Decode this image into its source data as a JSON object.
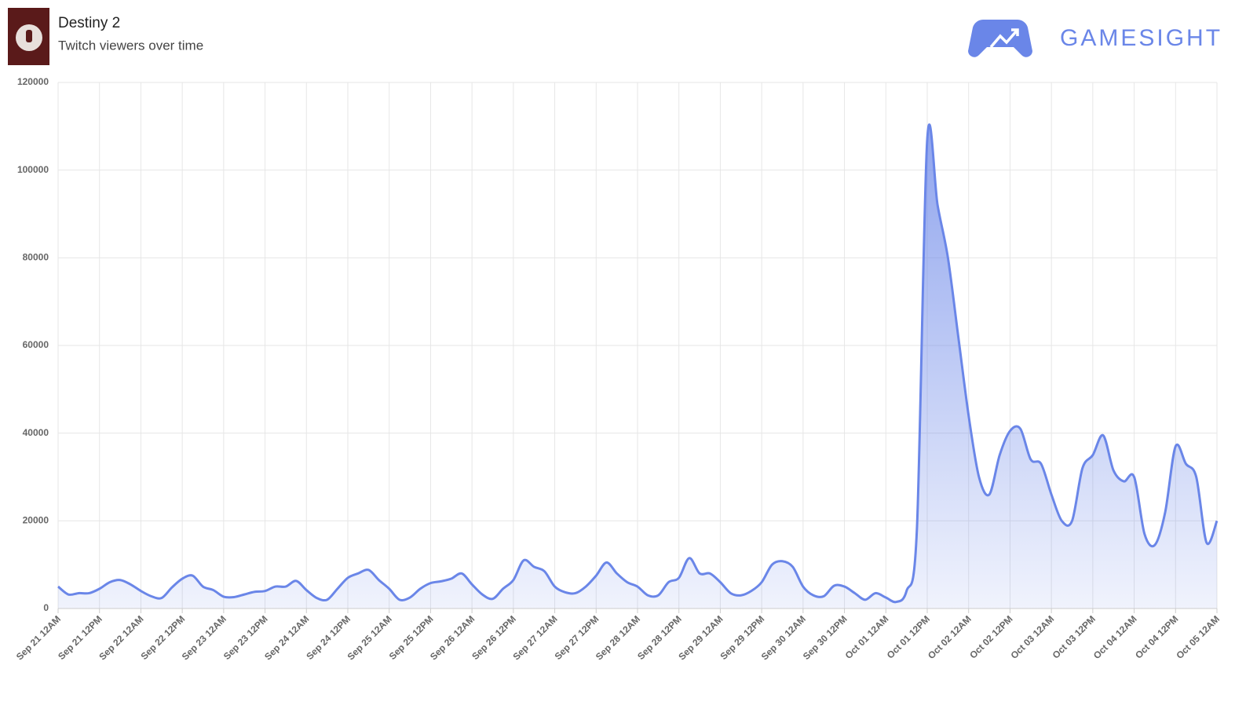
{
  "brand": "GAMESIGHT",
  "chart_data": {
    "type": "area",
    "title": "Destiny 2",
    "subtitle": "Twitch viewers over time",
    "color": "#6a86e8",
    "grid": true,
    "categories": [
      "Sep 21 12AM",
      null,
      null,
      null,
      "Sep 21 12PM",
      null,
      null,
      null,
      "Sep 22 12AM",
      null,
      null,
      null,
      "Sep 22 12PM",
      null,
      null,
      null,
      "Sep 23 12AM",
      null,
      null,
      null,
      "Sep 23 12PM",
      null,
      null,
      null,
      "Sep 24 12AM",
      null,
      null,
      null,
      "Sep 24 12PM",
      null,
      null,
      null,
      "Sep 25 12AM",
      null,
      null,
      null,
      "Sep 25 12PM",
      null,
      null,
      null,
      "Sep 26 12AM",
      null,
      null,
      null,
      "Sep 26 12PM",
      null,
      null,
      null,
      "Sep 27 12AM",
      null,
      null,
      null,
      "Sep 27 12PM",
      null,
      null,
      null,
      "Sep 28 12AM",
      null,
      null,
      null,
      "Sep 28 12PM",
      null,
      null,
      null,
      "Sep 29 12AM",
      null,
      null,
      null,
      "Sep 29 12PM",
      null,
      null,
      null,
      "Sep 30 12AM",
      null,
      null,
      null,
      "Sep 30 12PM",
      null,
      null,
      null,
      "Oct 01 12AM",
      null,
      null,
      null,
      "Oct 01 12PM",
      null,
      null,
      null,
      "Oct 02 12AM",
      null,
      null,
      null,
      "Oct 02 12PM",
      null,
      null,
      null,
      "Oct 03 12AM",
      null,
      null,
      null,
      "Oct 03 12PM",
      null,
      null,
      null,
      "Oct 04 12AM",
      null,
      null,
      null,
      "Oct 04 12PM",
      null,
      null,
      null,
      "Oct 05 12AM"
    ],
    "values": [
      5000,
      3200,
      3500,
      3500,
      4500,
      6000,
      6500,
      5500,
      4000,
      2800,
      2400,
      4800,
      6800,
      7500,
      5000,
      4200,
      2700,
      2600,
      3200,
      3800,
      4000,
      5000,
      5000,
      6300,
      4200,
      2400,
      2000,
      4500,
      7000,
      8000,
      8800,
      6500,
      4500,
      2000,
      2500,
      4500,
      5800,
      6200,
      6800,
      8000,
      5500,
      3200,
      2200,
      4500,
      6500,
      11000,
      9500,
      8500,
      5000,
      3700,
      3500,
      5000,
      7500,
      10500,
      8000,
      6000,
      5000,
      3000,
      3000,
      6000,
      7000,
      11500,
      8000,
      8000,
      6000,
      3500,
      3000,
      4000,
      6000,
      10000,
      10800,
      9500,
      5000,
      3000,
      2800,
      5200,
      5000,
      3500,
      2000,
      3500,
      2500,
      1500,
      4000,
      18000,
      107000,
      92000,
      80000,
      62000,
      44000,
      30000,
      26000,
      35000,
      40500,
      41000,
      34000,
      33000,
      26000,
      20000,
      20000,
      32000,
      35000,
      39500,
      31500,
      29000,
      30000,
      17000,
      14500,
      22000,
      37000,
      33000,
      30000,
      15000,
      20000
    ],
    "ylim": [
      0,
      120000
    ],
    "yticks": [
      0,
      20000,
      40000,
      60000,
      80000,
      100000,
      120000
    ]
  }
}
